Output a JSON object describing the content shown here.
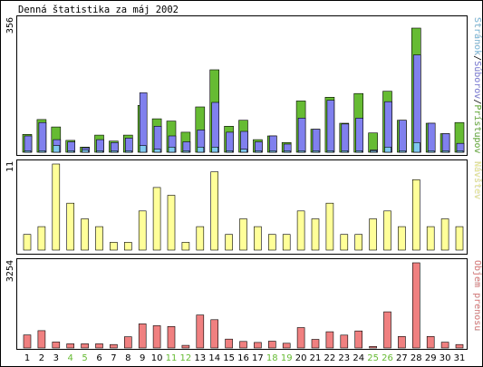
{
  "chart_data": {
    "type": "bar",
    "title": "Denná štatistika za máj 2002",
    "categories": [
      "1",
      "2",
      "3",
      "4",
      "5",
      "6",
      "7",
      "8",
      "9",
      "10",
      "11",
      "12",
      "13",
      "14",
      "15",
      "16",
      "17",
      "18",
      "19",
      "20",
      "21",
      "22",
      "23",
      "24",
      "25",
      "26",
      "27",
      "28",
      "29",
      "30",
      "31"
    ],
    "weekend_days": [
      "4",
      "5",
      "11",
      "12",
      "18",
      "19",
      "25",
      "26"
    ],
    "colors": {
      "pristupov": "#66bb33",
      "suborov": "#8080ee",
      "stranok": "#80c8f0",
      "navstev": "#ffff99",
      "objem": "#f08080",
      "weekday_label": "#000000",
      "weekend_label": "#66bb33"
    },
    "panels": [
      {
        "id": "hits",
        "max_label": "356",
        "ymax": 356,
        "legend": [
          {
            "key": "pristupov",
            "text": "Prístupov",
            "color": "#66bb33"
          },
          {
            "key": "suborov",
            "text": "Súborov",
            "color": "#8080ee"
          },
          {
            "key": "stranok",
            "text": "Stránok",
            "color": "#80c8f0"
          }
        ],
        "separator": "/",
        "series": [
          {
            "name": "Prístupov",
            "key": "pristupov",
            "values": [
              48,
              88,
              68,
              32,
              14,
              46,
              30,
              46,
              126,
              90,
              84,
              54,
              122,
              222,
              70,
              86,
              34,
              44,
              26,
              138,
              62,
              148,
              78,
              158,
              52,
              164,
              86,
              334,
              78,
              50,
              80
            ]
          },
          {
            "name": "Súborov",
            "key": "suborov",
            "values": [
              44,
              80,
              34,
              28,
              12,
              34,
              26,
              38,
              160,
              70,
              44,
              28,
              60,
              134,
              54,
              56,
              28,
              44,
              22,
              92,
              62,
              140,
              76,
              92,
              6,
              136,
              86,
              262,
              78,
              50,
              24
            ]
          },
          {
            "name": "Stránok",
            "key": "stranok",
            "values": [
              4,
              4,
              18,
              4,
              6,
              4,
              4,
              4,
              18,
              8,
              14,
              4,
              14,
              14,
              4,
              8,
              4,
              4,
              4,
              4,
              4,
              4,
              4,
              4,
              4,
              14,
              4,
              26,
              4,
              4,
              4
            ]
          }
        ]
      },
      {
        "id": "visits",
        "max_label": "11",
        "ymax": 11,
        "legend": [
          {
            "key": "navstev",
            "text": "Návštev",
            "color": "#ffff99"
          }
        ],
        "series": [
          {
            "name": "Návštev",
            "key": "navstev",
            "values": [
              2,
              3,
              11,
              6,
              4,
              3,
              1,
              1,
              5,
              8,
              7,
              1,
              3,
              10,
              2,
              4,
              3,
              2,
              2,
              5,
              4,
              6,
              2,
              2,
              4,
              5,
              3,
              9,
              3,
              4,
              3
            ]
          }
        ]
      },
      {
        "id": "volume",
        "max_label": "3254",
        "ymax": 3254,
        "legend": [
          {
            "key": "objem",
            "text": "Objem prenosu",
            "color": "#f08080"
          }
        ],
        "series": [
          {
            "name": "Objem prenosu",
            "key": "objem",
            "values": [
              500,
              660,
              230,
              160,
              160,
              160,
              130,
              430,
              920,
              850,
              820,
              100,
              1260,
              1080,
              340,
              250,
              210,
              260,
              180,
              780,
              330,
              620,
              490,
              650,
              60,
              1380,
              440,
              3254,
              440,
              220,
              130
            ]
          }
        ]
      }
    ]
  }
}
